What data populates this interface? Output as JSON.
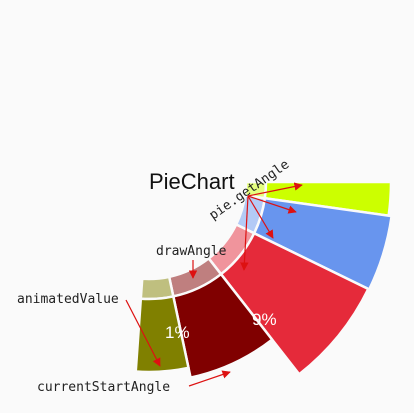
{
  "title": "PieChart",
  "labels": {
    "getAngle": "pie.getAngle",
    "drawAngle": "drawAngle",
    "animatedValue": "animatedValue",
    "currentStartAngle": "currentStartAngle"
  },
  "slice_labels": [
    "1%",
    "9%"
  ],
  "colors": {
    "background": "#fafafa",
    "arrow": "#dd1111",
    "olive": "#808000",
    "olive_light": "#bfbf7f",
    "dark_red": "#800000",
    "dark_red_light": "#bf7f7f",
    "red": "#e52a3a",
    "red_light": "#f0949c",
    "blue": "#6895ee",
    "blue_light": "#b3caf6",
    "lime": "#ccff00",
    "lime_light": "#e5ff7f"
  }
}
